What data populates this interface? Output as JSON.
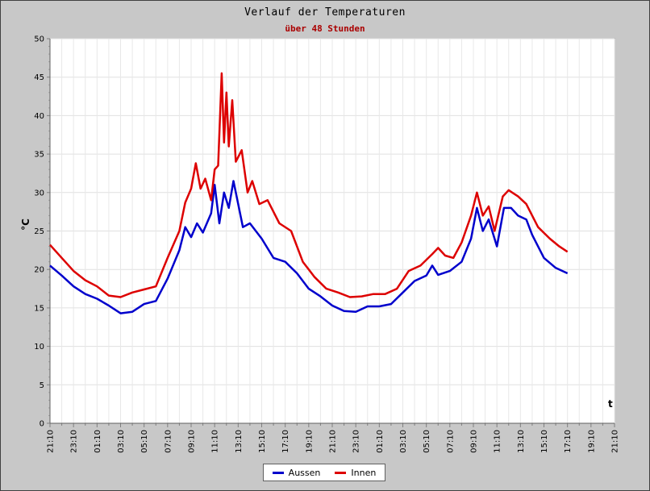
{
  "chart_data": {
    "type": "line",
    "title": "Verlauf der Temperaturen",
    "subtitle": "über 48 Stunden",
    "ylabel": "°C",
    "xlabel": "t",
    "ylim": [
      0,
      50
    ],
    "y_ticks": [
      0,
      5,
      10,
      15,
      20,
      25,
      30,
      35,
      40,
      45,
      50
    ],
    "x_range": [
      0,
      48
    ],
    "x_tick_labels": [
      "21:10",
      "23:10",
      "01:10",
      "03:10",
      "05:10",
      "07:10",
      "09:10",
      "11:10",
      "13:10",
      "15:10",
      "17:10",
      "19:10",
      "21:10",
      "23:10",
      "01:10",
      "03:10",
      "05:10",
      "07:10",
      "09:10",
      "11:10",
      "13:10",
      "15:10",
      "17:10",
      "19:10",
      "21:10"
    ],
    "grid": true,
    "legend_position": "bottom-center",
    "series": [
      {
        "name": "Aussen",
        "color": "#0000cc",
        "points": [
          [
            0,
            20.5
          ],
          [
            1,
            19.2
          ],
          [
            2,
            17.8
          ],
          [
            3,
            16.8
          ],
          [
            4,
            16.2
          ],
          [
            5,
            15.3
          ],
          [
            6,
            14.3
          ],
          [
            7,
            14.5
          ],
          [
            8,
            15.5
          ],
          [
            9,
            15.9
          ],
          [
            10,
            18.8
          ],
          [
            11,
            22.5
          ],
          [
            11.5,
            25.5
          ],
          [
            12,
            24.2
          ],
          [
            12.5,
            26
          ],
          [
            13,
            24.8
          ],
          [
            13.7,
            27.3
          ],
          [
            14,
            31
          ],
          [
            14.4,
            26
          ],
          [
            14.8,
            30
          ],
          [
            15.2,
            28
          ],
          [
            15.6,
            31.5
          ],
          [
            16.4,
            25.5
          ],
          [
            17,
            26
          ],
          [
            18,
            24
          ],
          [
            19,
            21.5
          ],
          [
            20,
            21
          ],
          [
            21,
            19.5
          ],
          [
            22,
            17.5
          ],
          [
            23,
            16.5
          ],
          [
            24,
            15.3
          ],
          [
            25,
            14.6
          ],
          [
            26,
            14.5
          ],
          [
            27,
            15.2
          ],
          [
            28,
            15.2
          ],
          [
            29,
            15.5
          ],
          [
            30,
            17
          ],
          [
            31,
            18.5
          ],
          [
            32,
            19.2
          ],
          [
            32.5,
            20.5
          ],
          [
            33,
            19.3
          ],
          [
            34,
            19.8
          ],
          [
            35,
            21
          ],
          [
            35.8,
            24
          ],
          [
            36.3,
            28
          ],
          [
            36.8,
            25
          ],
          [
            37.3,
            26.5
          ],
          [
            38,
            23
          ],
          [
            38.6,
            28
          ],
          [
            39.2,
            28
          ],
          [
            39.8,
            27
          ],
          [
            40.5,
            26.5
          ],
          [
            41,
            24.5
          ],
          [
            42,
            21.5
          ],
          [
            43,
            20.2
          ],
          [
            44,
            19.5
          ]
        ]
      },
      {
        "name": "Innen",
        "color": "#dd0000",
        "points": [
          [
            0,
            23.2
          ],
          [
            1,
            21.5
          ],
          [
            2,
            19.8
          ],
          [
            3,
            18.6
          ],
          [
            4,
            17.8
          ],
          [
            5,
            16.6
          ],
          [
            6,
            16.4
          ],
          [
            7,
            17
          ],
          [
            8,
            17.4
          ],
          [
            9,
            17.8
          ],
          [
            10,
            21.5
          ],
          [
            11,
            25
          ],
          [
            11.5,
            28.7
          ],
          [
            12,
            30.5
          ],
          [
            12.4,
            33.8
          ],
          [
            12.8,
            30.5
          ],
          [
            13.2,
            31.8
          ],
          [
            13.7,
            29
          ],
          [
            14,
            33
          ],
          [
            14.3,
            33.5
          ],
          [
            14.6,
            45.5
          ],
          [
            14.8,
            36.5
          ],
          [
            15,
            43
          ],
          [
            15.2,
            36
          ],
          [
            15.5,
            42
          ],
          [
            15.8,
            34
          ],
          [
            16.3,
            35.5
          ],
          [
            16.8,
            30
          ],
          [
            17.2,
            31.5
          ],
          [
            17.8,
            28.5
          ],
          [
            18.5,
            29
          ],
          [
            19.5,
            26
          ],
          [
            20.5,
            25
          ],
          [
            21.5,
            21
          ],
          [
            22.5,
            19
          ],
          [
            23.5,
            17.5
          ],
          [
            24.5,
            17
          ],
          [
            25.5,
            16.4
          ],
          [
            26.5,
            16.5
          ],
          [
            27.5,
            16.8
          ],
          [
            28.5,
            16.8
          ],
          [
            29.5,
            17.5
          ],
          [
            30.5,
            19.8
          ],
          [
            31.5,
            20.5
          ],
          [
            32.5,
            22
          ],
          [
            33,
            22.8
          ],
          [
            33.6,
            21.8
          ],
          [
            34.3,
            21.5
          ],
          [
            35,
            23.5
          ],
          [
            35.8,
            27
          ],
          [
            36.3,
            30
          ],
          [
            36.8,
            27
          ],
          [
            37.3,
            28.2
          ],
          [
            37.8,
            25
          ],
          [
            38.5,
            29.5
          ],
          [
            39,
            30.3
          ],
          [
            39.8,
            29.5
          ],
          [
            40.5,
            28.5
          ],
          [
            41.5,
            25.5
          ],
          [
            42.5,
            24
          ],
          [
            43.3,
            23
          ],
          [
            44,
            22.3
          ]
        ]
      }
    ]
  }
}
